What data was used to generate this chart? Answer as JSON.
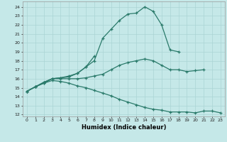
{
  "xlabel": "Humidex (Indice chaleur)",
  "bg_color": "#c5e8e8",
  "line_color": "#2a7a6a",
  "grid_color": "#aad4d4",
  "xlim": [
    -0.5,
    23.5
  ],
  "ylim": [
    11.8,
    24.6
  ],
  "yticks": [
    12,
    13,
    14,
    15,
    16,
    17,
    18,
    19,
    20,
    21,
    22,
    23,
    24
  ],
  "xticks": [
    0,
    1,
    2,
    3,
    4,
    5,
    6,
    7,
    8,
    9,
    10,
    11,
    12,
    13,
    14,
    15,
    16,
    17,
    18,
    19,
    20,
    21,
    22,
    23
  ],
  "s1_x": [
    0,
    1,
    2,
    3,
    4,
    5,
    6,
    7,
    8,
    9,
    10,
    11,
    12,
    13,
    14,
    15,
    16,
    17,
    18
  ],
  "s1_y": [
    14.6,
    15.1,
    15.6,
    16.0,
    16.1,
    16.2,
    16.6,
    17.3,
    18.0,
    20.5,
    21.5,
    22.5,
    23.2,
    23.3,
    24.0,
    23.5,
    22.0,
    19.2,
    19.0
  ],
  "s2_x": [
    0,
    1,
    2,
    3,
    4,
    5,
    6,
    7,
    8
  ],
  "s2_y": [
    14.6,
    15.1,
    15.6,
    16.0,
    16.1,
    16.3,
    16.6,
    17.3,
    18.5
  ],
  "s3_x": [
    0,
    1,
    2,
    3,
    4,
    5,
    6,
    7,
    8,
    9,
    10,
    11,
    12,
    13,
    14,
    15,
    16,
    17,
    18,
    19,
    20,
    21
  ],
  "s3_y": [
    14.6,
    15.1,
    15.5,
    16.0,
    16.0,
    16.0,
    16.0,
    16.1,
    16.3,
    16.5,
    17.0,
    17.5,
    17.8,
    18.0,
    18.2,
    18.0,
    17.5,
    17.0,
    17.0,
    16.8,
    16.9,
    17.0
  ],
  "s4_x": [
    0,
    1,
    2,
    3,
    4,
    5,
    6,
    7,
    8,
    9,
    10,
    11,
    12,
    13,
    14,
    15,
    16,
    17,
    18,
    19,
    20,
    21,
    22,
    23
  ],
  "s4_y": [
    14.6,
    15.1,
    15.5,
    15.8,
    15.7,
    15.5,
    15.2,
    15.0,
    14.7,
    14.4,
    14.1,
    13.7,
    13.4,
    13.1,
    12.8,
    12.6,
    12.5,
    12.3,
    12.3,
    12.3,
    12.2,
    12.4,
    12.4,
    12.2
  ]
}
